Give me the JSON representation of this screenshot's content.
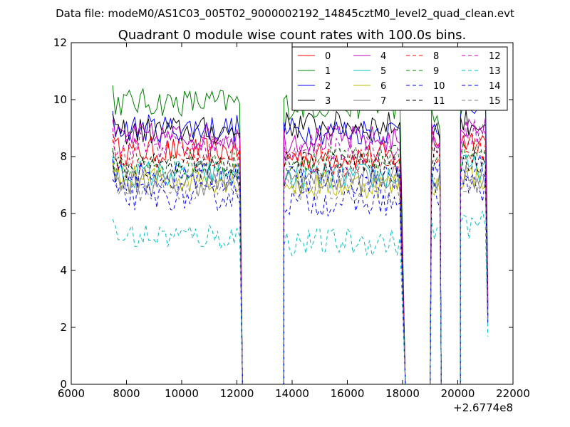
{
  "chart_data": {
    "type": "line",
    "supertitle": "Data file: modeM0/AS1C03_005T02_9000002192_14845cztM0_level2_quad_clean.evt",
    "title": "Quadrant 0 module wise count rates with 100.0s bins.",
    "xlabel": "",
    "ylabel": "",
    "x_offset_label": "+2.6774e8",
    "xlim": [
      6000,
      22000
    ],
    "ylim": [
      0,
      12
    ],
    "xticks": [
      6000,
      8000,
      10000,
      12000,
      14000,
      16000,
      18000,
      20000,
      22000
    ],
    "yticks": [
      0,
      2,
      4,
      6,
      8,
      10,
      12
    ],
    "xtick_labels": [
      "6000",
      "8000",
      "10000",
      "12000",
      "14000",
      "16000",
      "18000",
      "20000",
      "22000"
    ],
    "ytick_labels": [
      "0",
      "2",
      "4",
      "6",
      "8",
      "10",
      "12"
    ],
    "grid": false,
    "legend_position": "top-right",
    "segments": [
      [
        7500,
        12100
      ],
      [
        13700,
        17950
      ],
      [
        19050,
        19350
      ],
      [
        20100,
        21050
      ]
    ],
    "zero_intervals": [
      [
        12200,
        13700
      ],
      [
        18100,
        19000
      ],
      [
        19400,
        20100
      ]
    ],
    "series": [
      {
        "name": "0",
        "color": "#ff0000",
        "dash": "solid",
        "levels": [
          8.2,
          8.0,
          8.6,
          8.6
        ]
      },
      {
        "name": "1",
        "color": "#008000",
        "dash": "solid",
        "levels": [
          9.9,
          9.8,
          9.3,
          10.4
        ]
      },
      {
        "name": "2",
        "color": "#0000ff",
        "dash": "solid",
        "levels": [
          9.0,
          8.9,
          9.2,
          9.7
        ]
      },
      {
        "name": "3",
        "color": "#000000",
        "dash": "solid",
        "levels": [
          8.9,
          9.1,
          8.9,
          9.2
        ]
      },
      {
        "name": "4",
        "color": "#bf00bf",
        "dash": "solid",
        "levels": [
          8.7,
          8.6,
          8.7,
          9.0
        ]
      },
      {
        "name": "5",
        "color": "#00bfbf",
        "dash": "solid",
        "levels": [
          7.4,
          7.3,
          7.2,
          7.6
        ]
      },
      {
        "name": "6",
        "color": "#bfbf00",
        "dash": "solid",
        "levels": [
          7.2,
          7.0,
          7.0,
          7.3
        ]
      },
      {
        "name": "7",
        "color": "#808080",
        "dash": "solid",
        "levels": [
          7.1,
          7.2,
          7.0,
          7.3
        ]
      },
      {
        "name": "8",
        "color": "#ff0000",
        "dash": "dashed",
        "levels": [
          8.0,
          7.8,
          8.2,
          8.2
        ]
      },
      {
        "name": "9",
        "color": "#008000",
        "dash": "dashed",
        "levels": [
          7.7,
          7.9,
          8.0,
          8.1
        ]
      },
      {
        "name": "10",
        "color": "#0000ff",
        "dash": "dashed",
        "levels": [
          6.6,
          6.4,
          6.6,
          6.9
        ]
      },
      {
        "name": "11",
        "color": "#000000",
        "dash": "dashed",
        "levels": [
          7.6,
          7.7,
          7.8,
          7.8
        ]
      },
      {
        "name": "12",
        "color": "#bf00bf",
        "dash": "dashed",
        "levels": [
          8.4,
          8.3,
          8.6,
          8.9
        ]
      },
      {
        "name": "13",
        "color": "#00bfbf",
        "dash": "dashed",
        "levels": [
          5.2,
          5.0,
          5.4,
          5.6
        ]
      },
      {
        "name": "14",
        "color": "#0000ff",
        "dash": "dashed",
        "levels": [
          7.3,
          7.2,
          7.4,
          7.6
        ]
      },
      {
        "name": "15",
        "color": "#808080",
        "dash": "dashed",
        "levels": [
          6.9,
          6.9,
          7.1,
          7.2
        ]
      }
    ]
  }
}
